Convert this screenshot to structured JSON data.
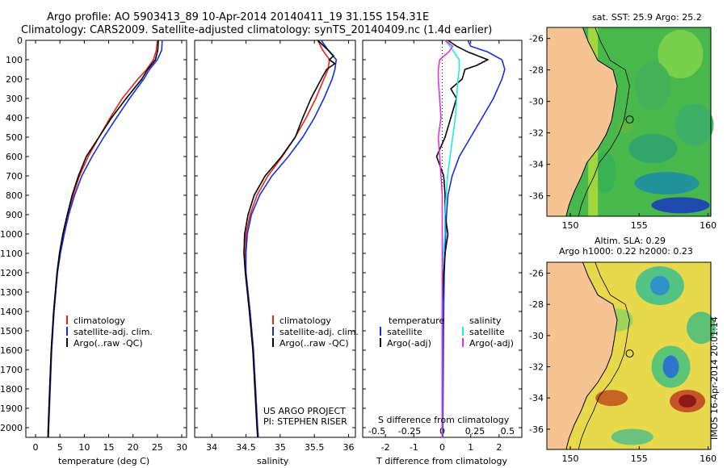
{
  "header": {
    "line1": "Argo profile: AO 5903413_89 10-Apr-2014 20140411_19 31.15S 154.31E",
    "line2": "Climatology: CARS2009. Satellite-adjusted climatology: synTS_20140409.nc (1.4d earlier)"
  },
  "colors": {
    "clim": "#e8231c",
    "sat": "#1a2fd9",
    "argo": "#000000",
    "sat_s": "#1ee8e8",
    "argo_s": "#e030e0"
  },
  "maps": {
    "sst_title": "sat. SST: 25.9 Argo: 25.2",
    "sla_title1": "Altim. SLA: 0.29",
    "sla_title2": "Argo h1000: 0.22 h2000: 0.23",
    "lat_ticks": [
      "-26",
      "-28",
      "-30",
      "-32",
      "-34",
      "-36"
    ],
    "lon_ticks": [
      "150",
      "155",
      "160"
    ],
    "side_label": "IMOS 16-Apr-2014 20:01:14"
  },
  "chart_data": [
    {
      "type": "line",
      "xlabel": "temperature (deg C)",
      "ylabel": "",
      "xlim": [
        -2,
        31
      ],
      "ylim": [
        2050,
        0
      ],
      "xticks": [
        "0",
        "5",
        "10",
        "15",
        "20",
        "25",
        "30"
      ],
      "yticks": [
        "0",
        "100",
        "200",
        "300",
        "400",
        "500",
        "600",
        "700",
        "800",
        "900",
        "1000",
        "1100",
        "1200",
        "1300",
        "1400",
        "1500",
        "1600",
        "1700",
        "1800",
        "1900",
        "2000"
      ],
      "legend": [
        "climatology",
        "satellite-adj. clim.",
        "Argo(..raw -QC)"
      ],
      "series": [
        {
          "name": "climatology",
          "color": "#e8231c",
          "depth": [
            0,
            50,
            100,
            150,
            200,
            300,
            400,
            500,
            600,
            700,
            800,
            900,
            1000,
            1100,
            1200,
            1400,
            1600,
            1800,
            2000,
            2050
          ],
          "values": [
            25.0,
            24.8,
            24.2,
            22.8,
            21.0,
            17.8,
            15.3,
            13.0,
            10.8,
            9.0,
            7.7,
            6.6,
            5.7,
            5.0,
            4.4,
            3.7,
            3.2,
            2.9,
            2.6,
            2.55
          ]
        },
        {
          "name": "satellite-adj. clim.",
          "color": "#1a2fd9",
          "depth": [
            0,
            50,
            100,
            150,
            200,
            300,
            400,
            500,
            600,
            700,
            800,
            900,
            1000,
            1100,
            1200,
            1400,
            1600,
            1800,
            2000,
            2050
          ],
          "values": [
            26.0,
            25.9,
            25.0,
            23.4,
            22.2,
            19.3,
            16.6,
            14.0,
            11.6,
            9.5,
            8.0,
            6.8,
            5.9,
            5.1,
            4.5,
            3.8,
            3.3,
            3.0,
            2.7,
            2.65
          ]
        },
        {
          "name": "Argo(..raw -QC)",
          "color": "#000000",
          "depth": [
            0,
            50,
            100,
            150,
            200,
            300,
            400,
            500,
            600,
            700,
            800,
            900,
            1000,
            1100,
            1200,
            1400,
            1600,
            1800,
            2000,
            2050
          ],
          "values": [
            25.2,
            25.1,
            24.6,
            23.0,
            21.8,
            18.6,
            15.6,
            13.0,
            10.4,
            8.8,
            7.5,
            6.5,
            5.6,
            4.9,
            4.4,
            3.7,
            3.2,
            2.9,
            2.6,
            2.55
          ]
        }
      ]
    },
    {
      "type": "line",
      "xlabel": "salinity",
      "ylabel": "",
      "xlim": [
        33.75,
        36.1
      ],
      "ylim": [
        2050,
        0
      ],
      "xticks": [
        "34",
        "34.5",
        "35",
        "35.5",
        "36"
      ],
      "legend": [
        "climatology",
        "satellite-adj. clim.",
        "Argo(..raw -QC)"
      ],
      "annotation": [
        "US ARGO PROJECT",
        "PI: STEPHEN RISER"
      ],
      "series": [
        {
          "name": "climatology",
          "color": "#e8231c",
          "depth": [
            0,
            50,
            100,
            150,
            200,
            300,
            400,
            500,
            600,
            700,
            800,
            900,
            1000,
            1100,
            1200,
            1400,
            1600,
            1800,
            2000,
            2050
          ],
          "values": [
            35.55,
            35.62,
            35.72,
            35.7,
            35.64,
            35.52,
            35.38,
            35.22,
            35.03,
            34.82,
            34.66,
            34.56,
            34.5,
            34.49,
            34.5,
            34.56,
            34.61,
            34.64,
            34.67,
            34.68
          ]
        },
        {
          "name": "satellite-adj. clim.",
          "color": "#1a2fd9",
          "depth": [
            0,
            50,
            100,
            150,
            200,
            300,
            400,
            500,
            600,
            700,
            800,
            900,
            1000,
            1100,
            1200,
            1400,
            1600,
            1800,
            2000,
            2050
          ],
          "values": [
            35.6,
            35.7,
            35.82,
            35.8,
            35.76,
            35.64,
            35.5,
            35.33,
            35.12,
            34.88,
            34.7,
            34.58,
            34.52,
            34.5,
            34.5,
            34.56,
            34.61,
            34.64,
            34.67,
            34.68
          ]
        },
        {
          "name": "Argo(..raw -QC)",
          "color": "#000000",
          "depth": [
            0,
            50,
            80,
            100,
            120,
            150,
            200,
            300,
            400,
            500,
            600,
            700,
            800,
            900,
            1000,
            1100,
            1200,
            1400,
            1600,
            1800,
            2000,
            2050
          ],
          "values": [
            35.55,
            35.7,
            35.78,
            35.72,
            35.8,
            35.68,
            35.6,
            35.45,
            35.33,
            35.22,
            35.02,
            34.78,
            34.62,
            34.53,
            34.48,
            34.47,
            34.49,
            34.55,
            34.6,
            34.63,
            34.66,
            34.67
          ]
        }
      ]
    },
    {
      "type": "line",
      "xlabel": "T difference from climatology",
      "xlabel2": "S difference from climatology",
      "ylabel": "",
      "xlim": [
        -2.8,
        2.8
      ],
      "ylim": [
        2050,
        0
      ],
      "xticks": [
        "-2",
        "-1",
        "0",
        "1",
        "2"
      ],
      "xticks_s": [
        "-0.5",
        "-0.25",
        "0",
        "0.25",
        "0.5"
      ],
      "legend_t_title": "temperature",
      "legend_s_title": "salinity",
      "legend": [
        "satellite",
        "Argo(-adj)",
        "satellite",
        "Argo(-adj)"
      ],
      "series": [
        {
          "name": "satellite",
          "color": "#1a2fd9",
          "depth": [
            0,
            30,
            60,
            100,
            150,
            200,
            300,
            400,
            500,
            600,
            700,
            800,
            900,
            1000,
            1100,
            1200,
            1400,
            1600,
            1800,
            2000,
            2050
          ],
          "values": [
            0.9,
            1.0,
            1.6,
            2.1,
            2.2,
            2.1,
            1.8,
            1.4,
            1.0,
            0.6,
            0.35,
            0.2,
            0.15,
            0.12,
            0.1,
            0.07,
            0.05,
            0.04,
            0.03,
            0.02,
            0.02
          ]
        },
        {
          "name": "Argo(-adj)",
          "color": "#000000",
          "depth": [
            0,
            30,
            60,
            100,
            130,
            150,
            200,
            250,
            300,
            400,
            500,
            600,
            700,
            800,
            900,
            1000,
            1100,
            1200,
            1400,
            1600,
            1800,
            2000,
            2050
          ],
          "values": [
            0.2,
            0.5,
            0.9,
            1.6,
            1.2,
            0.8,
            0.7,
            0.3,
            0.5,
            0.3,
            0.1,
            -0.2,
            0.05,
            0.1,
            0.1,
            0.2,
            0.1,
            0.05,
            0.0,
            0.0,
            0.0,
            0.0,
            0.0
          ]
        },
        {
          "name": "satellite",
          "color": "#1ee8e8",
          "depth": [
            0,
            30,
            60,
            100,
            150,
            200,
            300,
            400,
            500,
            600,
            700,
            800,
            900,
            1000,
            1100,
            1200,
            1400,
            1600,
            1800,
            2000,
            2050
          ],
          "values": [
            0.02,
            0.06,
            0.09,
            0.13,
            0.13,
            0.12,
            0.11,
            0.1,
            0.08,
            0.06,
            0.04,
            0.03,
            0.02,
            0.02,
            0.01,
            0.0,
            0.0,
            0.0,
            0.0,
            0.0,
            0.0
          ]
        },
        {
          "name": "Argo(-adj)",
          "color": "#e030e0",
          "depth": [
            0,
            30,
            60,
            100,
            150,
            200,
            300,
            400,
            500,
            600,
            700,
            800,
            900,
            1000,
            1100,
            1200,
            1400,
            1600,
            1800,
            2000,
            2050
          ],
          "values": [
            0.02,
            0.08,
            0.05,
            -0.02,
            -0.03,
            -0.03,
            -0.02,
            -0.01,
            -0.03,
            -0.02,
            -0.01,
            0.0,
            0.0,
            0.0,
            0.0,
            0.0,
            0.0,
            0.0,
            0.0,
            0.0,
            0.0
          ]
        }
      ]
    }
  ]
}
